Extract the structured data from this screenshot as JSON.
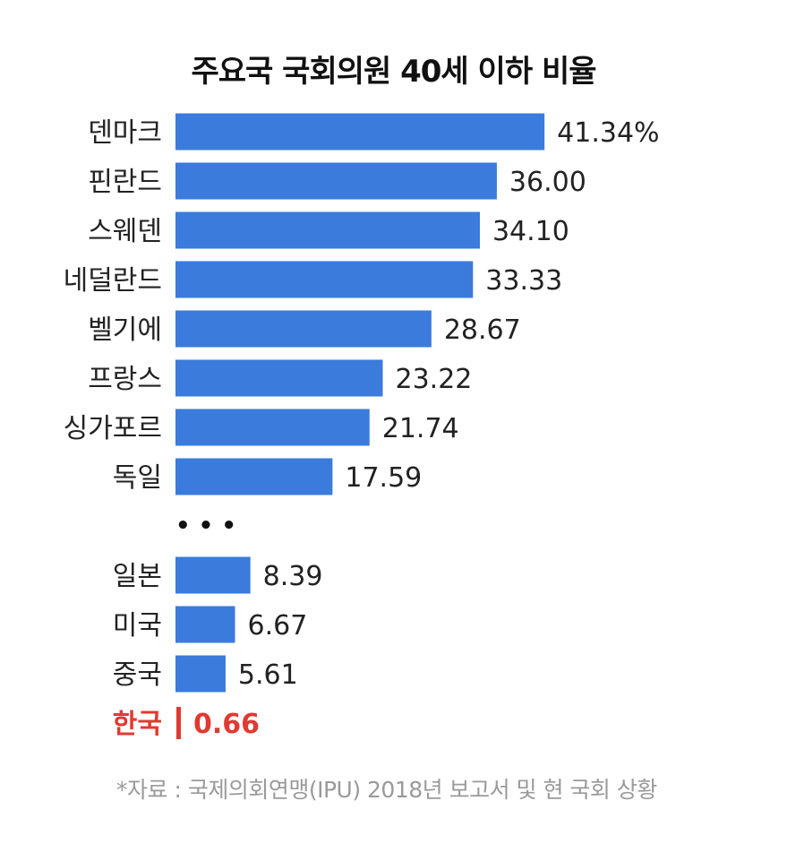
{
  "chart_data": {
    "type": "bar",
    "orientation": "horizontal",
    "title": "주요국 국회의원 40세 이하 비율",
    "categories": [
      "덴마크",
      "핀란드",
      "스웨덴",
      "네덜란드",
      "벨기에",
      "프랑스",
      "싱가포르",
      "독일",
      "일본",
      "미국",
      "중국",
      "한국"
    ],
    "values": [
      41.34,
      36.0,
      34.1,
      33.33,
      28.67,
      23.22,
      21.74,
      17.59,
      8.39,
      6.67,
      5.61,
      0.66
    ],
    "value_labels": [
      "41.34%",
      "36.00",
      "34.10",
      "33.33",
      "28.67",
      "23.22",
      "21.74",
      "17.59",
      "8.39",
      "6.67",
      "5.61",
      "0.66"
    ],
    "gap_after_index": 7,
    "gap_marker": "• • •",
    "highlight_category": "한국",
    "colors": {
      "bar": "#3a7bdc",
      "highlight": "#e03a32",
      "label": "#222222"
    },
    "source": "*자료 : 국제의회연맹(IPU) 2018년 보고서 및 현 국회 상황"
  }
}
